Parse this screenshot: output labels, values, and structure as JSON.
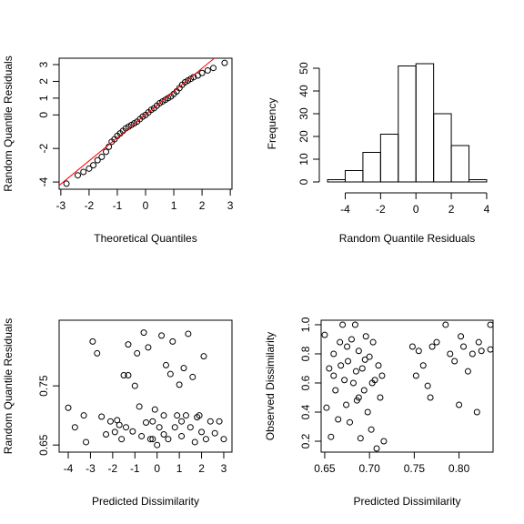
{
  "chart_data": [
    {
      "type": "qq",
      "xlabel": "Theoretical Quantiles",
      "ylabel": "Random Quantile Residuals",
      "xlim": [
        -3.06,
        3.06
      ],
      "ylim": [
        -4.43,
        3.38
      ],
      "xticks": [
        -3,
        -2,
        -1,
        0,
        1,
        2,
        3
      ],
      "yticks": [
        -4,
        -2,
        0,
        1,
        2,
        3
      ],
      "line": {
        "intercept": 0.02,
        "slope": 1.38,
        "color": "#ff0000"
      },
      "x": [
        -2.8,
        -2.4,
        -2.2,
        -2.0,
        -1.85,
        -1.7,
        -1.55,
        -1.4,
        -1.3,
        -1.2,
        -1.1,
        -1.0,
        -0.9,
        -0.8,
        -0.7,
        -0.6,
        -0.5,
        -0.4,
        -0.3,
        -0.2,
        -0.1,
        0,
        0.1,
        0.2,
        0.3,
        0.4,
        0.5,
        0.6,
        0.7,
        0.8,
        0.9,
        1.0,
        1.1,
        1.2,
        1.3,
        1.4,
        1.5,
        1.6,
        1.7,
        1.85,
        2.0,
        2.2,
        2.4,
        2.8
      ],
      "y": [
        -4.1,
        -3.6,
        -3.4,
        -3.2,
        -3.0,
        -2.7,
        -2.5,
        -2.2,
        -1.9,
        -1.6,
        -1.45,
        -1.25,
        -1.1,
        -0.95,
        -0.8,
        -0.7,
        -0.6,
        -0.5,
        -0.4,
        -0.25,
        -0.1,
        0,
        0.15,
        0.3,
        0.4,
        0.55,
        0.7,
        0.8,
        0.9,
        1.0,
        1.1,
        1.25,
        1.4,
        1.6,
        1.8,
        1.95,
        2.05,
        2.15,
        2.25,
        2.35,
        2.5,
        2.65,
        2.8,
        3.1
      ]
    },
    {
      "type": "histogram",
      "xlabel": "Random Quantile Residuals",
      "ylabel": "Frequency",
      "xlim": [
        -5.26,
        4.26
      ],
      "ylim": [
        -3.2,
        54.4
      ],
      "xticks": [
        -4,
        -2,
        0,
        2,
        4
      ],
      "yticks": [
        0,
        10,
        20,
        30,
        40,
        50
      ],
      "bins": [
        -5,
        -4,
        -3,
        -2,
        -1,
        0,
        1,
        2,
        3,
        4
      ],
      "counts": [
        1,
        5,
        13,
        21,
        51,
        52,
        30,
        16,
        1
      ]
    },
    {
      "type": "scatter",
      "xlabel": "Predicted Dissimilarity",
      "ylabel": "Random Quantile Residuals",
      "xlim": [
        -4.41,
        3.37
      ],
      "ylim": [
        0.638,
        0.861
      ],
      "xticks": [
        -4,
        -3,
        -2,
        -1,
        0,
        1,
        2,
        3
      ],
      "yticks": [
        0.65,
        0.75
      ],
      "x": [
        -4,
        -3.7,
        -3.3,
        -3.2,
        -2.9,
        -2.7,
        -2.5,
        -2.3,
        -2.1,
        -1.9,
        -1.8,
        -1.6,
        -1.5,
        -1.4,
        -1.3,
        -1.3,
        -1.1,
        -1.0,
        -0.9,
        -0.8,
        -0.7,
        -0.6,
        -0.5,
        -0.4,
        -0.3,
        -0.2,
        -0.1,
        0,
        0.1,
        0.2,
        0.3,
        0.4,
        0.5,
        0.6,
        0.7,
        0.8,
        0.9,
        1.0,
        1.1,
        1.2,
        1.3,
        1.4,
        1.5,
        1.6,
        1.7,
        1.8,
        1.9,
        2.0,
        2.1,
        2.2,
        2.4,
        2.6,
        2.8,
        3.0,
        -0.2,
        0.3,
        -1.7,
        1.1
      ],
      "y": [
        0.713,
        0.68,
        0.7,
        0.655,
        0.825,
        0.805,
        0.698,
        0.668,
        0.69,
        0.672,
        0.692,
        0.66,
        0.768,
        0.68,
        0.768,
        0.82,
        0.673,
        0.75,
        0.805,
        0.715,
        0.665,
        0.84,
        0.688,
        0.815,
        0.66,
        0.69,
        0.71,
        0.65,
        0.68,
        0.835,
        0.7,
        0.785,
        0.66,
        0.77,
        0.825,
        0.68,
        0.7,
        0.752,
        0.665,
        0.78,
        0.7,
        0.838,
        0.68,
        0.765,
        0.655,
        0.697,
        0.7,
        0.672,
        0.8,
        0.66,
        0.69,
        0.67,
        0.69,
        0.66,
        0.66,
        0.668,
        0.684,
        0.69
      ]
    },
    {
      "type": "scatter",
      "xlabel": "Predicted Dissimilarity",
      "ylabel": "Observed Dissimilarity",
      "xlim": [
        0.646,
        0.838
      ],
      "ylim": [
        0.125,
        1.031
      ],
      "xticks": [
        0.65,
        {
          "value": 0.7,
          "label": "0.70"
        },
        0.75,
        {
          "value": 0.8,
          "label": "0.80"
        }
      ],
      "yticks": [
        0.2,
        0.4,
        0.6,
        0.8,
        {
          "value": 1,
          "label": "1.0"
        }
      ],
      "x": [
        0.65,
        0.652,
        0.655,
        0.657,
        0.66,
        0.662,
        0.665,
        0.667,
        0.67,
        0.672,
        0.674,
        0.676,
        0.678,
        0.68,
        0.682,
        0.684,
        0.686,
        0.688,
        0.69,
        0.692,
        0.694,
        0.696,
        0.698,
        0.7,
        0.702,
        0.704,
        0.706,
        0.708,
        0.71,
        0.712,
        0.714,
        0.716,
        0.66,
        0.668,
        0.675,
        0.685,
        0.695,
        0.703,
        0.748,
        0.752,
        0.755,
        0.76,
        0.765,
        0.768,
        0.77,
        0.775,
        0.785,
        0.79,
        0.795,
        0.8,
        0.802,
        0.805,
        0.81,
        0.815,
        0.82,
        0.822,
        0.825,
        0.835,
        0.835,
        0.688
      ],
      "y": [
        0.93,
        0.43,
        0.7,
        0.23,
        0.8,
        0.55,
        0.35,
        0.88,
        1.0,
        0.62,
        0.45,
        0.75,
        0.33,
        0.9,
        0.6,
        1.0,
        0.48,
        0.82,
        0.22,
        0.7,
        0.55,
        0.92,
        0.4,
        0.78,
        0.28,
        0.88,
        0.62,
        0.15,
        0.72,
        0.5,
        0.65,
        0.2,
        0.65,
        0.72,
        0.85,
        0.68,
        0.76,
        0.6,
        0.85,
        0.65,
        0.82,
        0.72,
        0.58,
        0.5,
        0.85,
        0.88,
        1.0,
        0.8,
        0.75,
        0.45,
        0.92,
        0.85,
        0.68,
        0.8,
        0.4,
        0.88,
        0.82,
        1.0,
        0.83,
        0.5
      ]
    }
  ]
}
